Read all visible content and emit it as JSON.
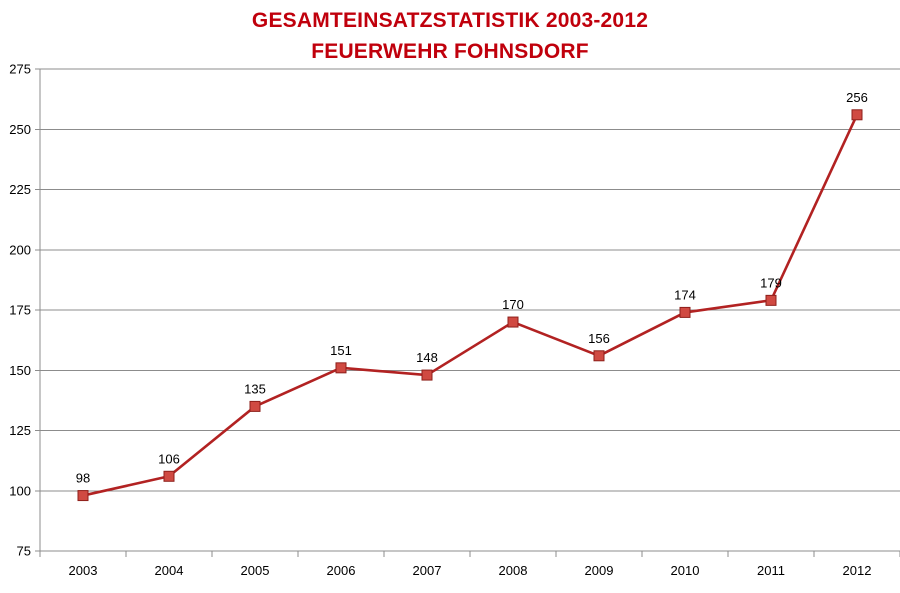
{
  "chart_data": {
    "type": "line",
    "title": "GESAMTEINSATZSTATISTIK 2003-2012",
    "subtitle": "FEUERWEHR FOHNSDORF",
    "xlabel": "",
    "ylabel": "",
    "categories": [
      "2003",
      "2004",
      "2005",
      "2006",
      "2007",
      "2008",
      "2009",
      "2010",
      "2011",
      "2012"
    ],
    "series": [
      {
        "values": [
          98,
          106,
          135,
          151,
          148,
          170,
          156,
          174,
          179,
          256
        ],
        "color": "#c0392b",
        "marker": "square"
      }
    ],
    "ylim": [
      75,
      275
    ],
    "yticks": [
      75,
      100,
      125,
      150,
      175,
      200,
      225,
      250,
      275
    ],
    "grid": true,
    "legend": "none",
    "data_labels": true
  },
  "colors": {
    "title": "#c0000c",
    "line": "#b22222",
    "marker_fill": "#d04a42",
    "marker_stroke": "#8e1f1a",
    "gridline": "#8c8c8c",
    "axis": "#8c8c8c"
  }
}
